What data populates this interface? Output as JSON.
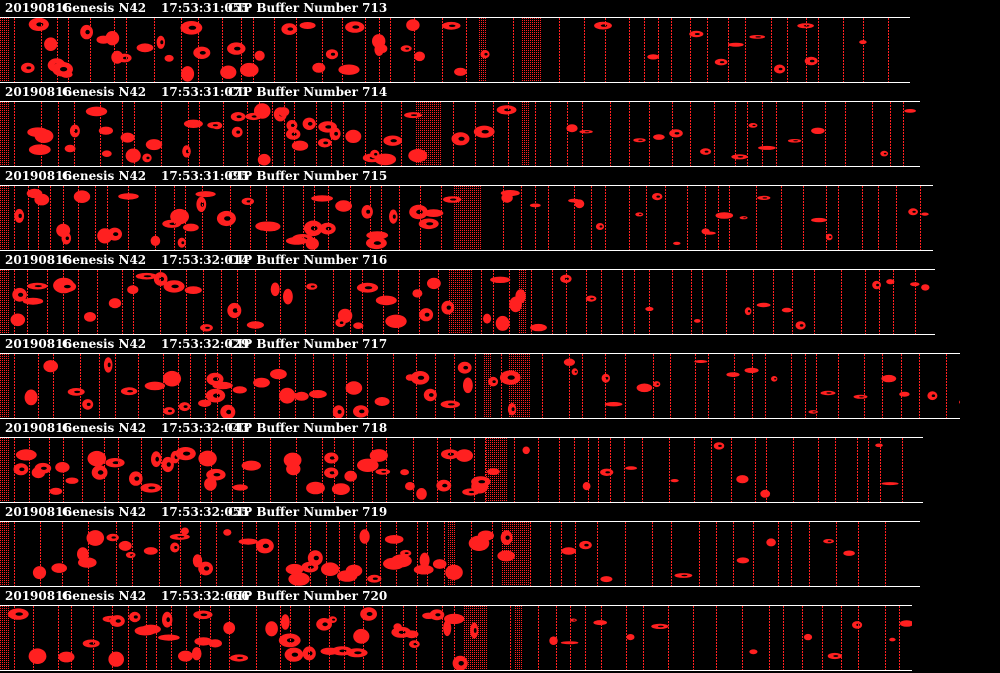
{
  "colors": {
    "background": "#000000",
    "particle": "#ff2020",
    "text": "#ffffff"
  },
  "buffers": [
    {
      "date": "20190816",
      "probe": "Genesis N42",
      "time": "17:53:31:055",
      "caption": "CIP Buffer Number 713",
      "fill": 0.91
    },
    {
      "date": "20190816",
      "probe": "Genesis N42",
      "time": "17:53:31:071",
      "caption": "CIP Buffer Number 714",
      "fill": 0.92
    },
    {
      "date": "20190816",
      "probe": "Genesis N42",
      "time": "17:53:31:095",
      "caption": "CIP Buffer Number 715",
      "fill": 0.933
    },
    {
      "date": "20190816",
      "probe": "Genesis N42",
      "time": "17:53:32:014",
      "caption": "CIP Buffer Number 716",
      "fill": 0.935
    },
    {
      "date": "20190816",
      "probe": "Genesis N42",
      "time": "17:53:32:029",
      "caption": "CIP Buffer Number 717",
      "fill": 0.96
    },
    {
      "date": "20190816",
      "probe": "Genesis N42",
      "time": "17:53:32:043",
      "caption": "CIP Buffer Number 718",
      "fill": 0.923
    },
    {
      "date": "20190816",
      "probe": "Genesis N42",
      "time": "17:53:32:055",
      "caption": "CIP Buffer Number 719",
      "fill": 0.92
    },
    {
      "date": "20190816",
      "probe": "Genesis N42",
      "time": "17:53:32:066",
      "caption": "CIP Buffer Number 720",
      "fill": 0.912
    }
  ]
}
